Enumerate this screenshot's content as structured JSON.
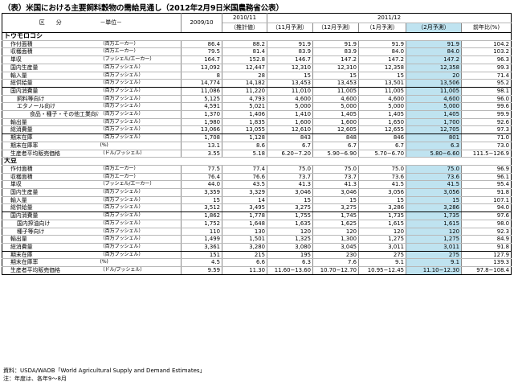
{
  "title": "（表）米国における主要飼料穀物の需給見通し（2012年2月9日米国農務省公表）",
  "header": {
    "item": "区　　分",
    "unit": "－単位－",
    "y2009": "2009/10",
    "y2010": "2010/11",
    "y2011": "2011/12",
    "est": "（推計値）",
    "nov": "（11月予測）",
    "dec": "（12月予測）",
    "jan": "（1月予測）",
    "feb": "（2月予測）",
    "yoy": "前年比(%)"
  },
  "sections": [
    {
      "name": "トウモロコシ",
      "groups": [
        [
          {
            "label": "作付面積",
            "unit": "（百万エーカー）",
            "level": 1,
            "v": [
              "86.4",
              "88.2",
              "91.9",
              "91.9",
              "91.9",
              "91.9",
              "104.2"
            ]
          },
          {
            "label": "収穫面積",
            "unit": "（百万エーカー）",
            "level": 1,
            "v": [
              "79.5",
              "81.4",
              "83.9",
              "83.9",
              "84.0",
              "84.0",
              "103.2"
            ]
          },
          {
            "label": "単収",
            "unit": "（ブッシェル/エーカー）",
            "level": 1,
            "v": [
              "164.7",
              "152.8",
              "146.7",
              "147.2",
              "147.2",
              "147.2",
              "96.3"
            ]
          },
          {
            "label": "国内生産量",
            "unit": "（百万ブッシェル）",
            "level": 1,
            "v": [
              "13,092",
              "12,447",
              "12,310",
              "12,310",
              "12,358",
              "12,358",
              "99.3"
            ]
          },
          {
            "label": "輸入量",
            "unit": "（百万ブッシェル）",
            "level": 1,
            "v": [
              "8",
              "28",
              "15",
              "15",
              "15",
              "20",
              "71.4"
            ]
          },
          {
            "label": "総供給量",
            "unit": "（百万ブッシェル）",
            "level": 1,
            "v": [
              "14,774",
              "14,182",
              "13,453",
              "13,453",
              "13,501",
              "13,506",
              "95.2"
            ]
          }
        ],
        [
          {
            "label": "国内消費量",
            "unit": "（百万ブッシェル）",
            "level": 1,
            "v": [
              "11,086",
              "11,220",
              "11,010",
              "11,005",
              "11,005",
              "11,005",
              "98.1"
            ]
          },
          {
            "label": "飼料等向け",
            "unit": "（百万ブッシェル）",
            "level": 2,
            "v": [
              "5,125",
              "4,793",
              "4,600",
              "4,600",
              "4,600",
              "4,600",
              "96.0"
            ]
          },
          {
            "label": "エタノール向け",
            "unit": "（百万ブッシェル）",
            "level": 2,
            "v": [
              "4,591",
              "5,021",
              "5,000",
              "5,000",
              "5,000",
              "5,000",
              "99.6"
            ]
          },
          {
            "label": "食品・種子・その他工業向け",
            "unit": "（百万ブッシェル）",
            "level": 3,
            "v": [
              "1,370",
              "1,406",
              "1,410",
              "1,405",
              "1,405",
              "1,405",
              "99.9"
            ]
          },
          {
            "label": "輸出量",
            "unit": "（百万ブッシェル）",
            "level": 1,
            "v": [
              "1,980",
              "1,835",
              "1,600",
              "1,600",
              "1,650",
              "1,700",
              "92.6"
            ]
          },
          {
            "label": "総消費量",
            "unit": "（百万ブッシェル）",
            "level": 1,
            "v": [
              "13,066",
              "13,055",
              "12,610",
              "12,605",
              "12,655",
              "12,705",
              "97.3"
            ]
          }
        ],
        [
          {
            "label": "期末在庫",
            "unit": "（百万ブッシェル）",
            "level": 1,
            "v": [
              "1,708",
              "1,128",
              "843",
              "848",
              "846",
              "801",
              "71.0"
            ]
          },
          {
            "label": "期末在庫率",
            "unit": "(%)",
            "level": 1,
            "v": [
              "13.1",
              "8.6",
              "6.7",
              "6.7",
              "6.7",
              "6.3",
              "73.0"
            ]
          },
          {
            "label": "生産者平均販売価格",
            "unit": "（ドル/ブッシェル）",
            "level": 1,
            "v": [
              "3.55",
              "5.18",
              "6.20−7.20",
              "5.90−6.90",
              "5.70−6.70",
              "5.80−6.60",
              "111.5−126.9"
            ]
          }
        ]
      ]
    },
    {
      "name": "大豆",
      "groups": [
        [
          {
            "label": "作付面積",
            "unit": "（百万エーカー）",
            "level": 1,
            "v": [
              "77.5",
              "77.4",
              "75.0",
              "75.0",
              "75.0",
              "75.0",
              "96.9"
            ]
          },
          {
            "label": "収穫面積",
            "unit": "（百万エーカー）",
            "level": 1,
            "v": [
              "76.4",
              "76.6",
              "73.7",
              "73.7",
              "73.6",
              "73.6",
              "96.1"
            ]
          },
          {
            "label": "単収",
            "unit": "（ブッシェル/エーカー）",
            "level": 1,
            "v": [
              "44.0",
              "43.5",
              "41.3",
              "41.3",
              "41.5",
              "41.5",
              "95.4"
            ]
          },
          {
            "label": "国内生産量",
            "unit": "（百万ブッシェル）",
            "level": 1,
            "v": [
              "3,359",
              "3,329",
              "3,046",
              "3,046",
              "3,056",
              "3,056",
              "91.8"
            ]
          },
          {
            "label": "輸入量",
            "unit": "（百万ブッシェル）",
            "level": 1,
            "v": [
              "15",
              "14",
              "15",
              "15",
              "15",
              "15",
              "107.1"
            ]
          },
          {
            "label": "総供給量",
            "unit": "（百万ブッシェル）",
            "level": 1,
            "v": [
              "3,512",
              "3,495",
              "3,275",
              "3,275",
              "3,286",
              "3,286",
              "94.0"
            ]
          }
        ],
        [
          {
            "label": "国内消費量",
            "unit": "（百万ブッシェル）",
            "level": 1,
            "v": [
              "1,862",
              "1,778",
              "1,755",
              "1,745",
              "1,735",
              "1,735",
              "97.6"
            ]
          },
          {
            "label": "国内搾油向け",
            "unit": "（百万ブッシェル）",
            "level": 2,
            "v": [
              "1,752",
              "1,648",
              "1,635",
              "1,625",
              "1,615",
              "1,615",
              "98.0"
            ]
          },
          {
            "label": "種子等向け",
            "unit": "（百万ブッシェル）",
            "level": 2,
            "v": [
              "110",
              "130",
              "120",
              "120",
              "120",
              "120",
              "92.3"
            ]
          },
          {
            "label": "輸出量",
            "unit": "（百万ブッシェル）",
            "level": 1,
            "v": [
              "1,499",
              "1,501",
              "1,325",
              "1,300",
              "1,275",
              "1,275",
              "84.9"
            ]
          },
          {
            "label": "総消費量",
            "unit": "（百万ブッシェル）",
            "level": 1,
            "v": [
              "3,361",
              "3,280",
              "3,080",
              "3,045",
              "3,011",
              "3,011",
              "91.8"
            ]
          }
        ],
        [
          {
            "label": "期末在庫",
            "unit": "（百万ブッシェル）",
            "level": 1,
            "v": [
              "151",
              "215",
              "195",
              "230",
              "275",
              "275",
              "127.9"
            ]
          },
          {
            "label": "期末在庫率",
            "unit": "(%)",
            "level": 1,
            "v": [
              "4.5",
              "6.6",
              "6.3",
              "7.6",
              "9.1",
              "9.1",
              "139.3"
            ]
          },
          {
            "label": "生産者平均販売価格",
            "unit": "（ドル/ブッシェル）",
            "level": 1,
            "v": [
              "9.59",
              "11.30",
              "11.60−13.60",
              "10.70−12.70",
              "10.95−12.45",
              "11.10−12.30",
              "97.8−108.4"
            ]
          }
        ]
      ]
    }
  ],
  "notes": [
    "資料：USDA/WAOB「World Agricultural Supply and Demand Estimates」",
    "注：年度は、各年9～8月"
  ]
}
